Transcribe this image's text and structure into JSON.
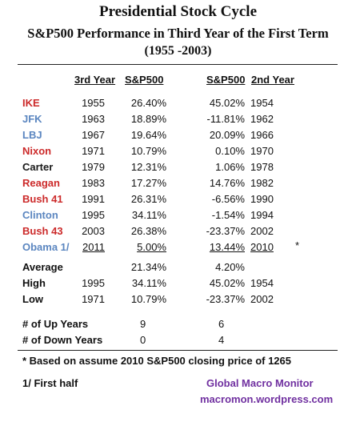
{
  "title": {
    "line1": "Presidential Stock Cycle",
    "line2": "S&P500 Performance in Third Year of the First Term",
    "line3": "(1955 -2003)"
  },
  "headers": {
    "third_year": "3rd Year",
    "sp500_third": "S&P500",
    "sp500_second": "S&P500",
    "second_year": "2nd Year"
  },
  "colors": {
    "red": "#cc2a2a",
    "blue": "#5b86c0",
    "black": "#1a1a1a"
  },
  "rows": [
    {
      "name": "IKE",
      "color": "red",
      "y3": "1955",
      "p3": "26.40%",
      "p2": "45.02%",
      "y2": "1954"
    },
    {
      "name": "JFK",
      "color": "blue",
      "y3": "1963",
      "p3": "18.89%",
      "p2": "-11.81%",
      "y2": "1962"
    },
    {
      "name": "LBJ",
      "color": "blue",
      "y3": "1967",
      "p3": "19.64%",
      "p2": "20.09%",
      "y2": "1966"
    },
    {
      "name": "Nixon",
      "color": "red",
      "y3": "1971",
      "p3": "10.79%",
      "p2": "0.10%",
      "y2": "1970"
    },
    {
      "name": "Carter",
      "color": "black",
      "y3": "1979",
      "p3": "12.31%",
      "p2": "1.06%",
      "y2": "1978"
    },
    {
      "name": "Reagan",
      "color": "red",
      "y3": "1983",
      "p3": "17.27%",
      "p2": "14.76%",
      "y2": "1982"
    },
    {
      "name": "Bush 41",
      "color": "red",
      "y3": "1991",
      "p3": "26.31%",
      "p2": "-6.56%",
      "y2": "1990"
    },
    {
      "name": "Clinton",
      "color": "blue",
      "y3": "1995",
      "p3": "34.11%",
      "p2": "-1.54%",
      "y2": "1994"
    },
    {
      "name": "Bush 43",
      "color": "red",
      "y3": "2003",
      "p3": "26.38%",
      "p2": "-23.37%",
      "y2": "2002"
    },
    {
      "name": "Obama 1/",
      "color": "blue",
      "y3": "2011",
      "p3": "5.00%",
      "p2": "13.44%",
      "y2": "2010",
      "mark": "*"
    }
  ],
  "stats": [
    {
      "label": "Average",
      "y3": "",
      "p3": "21.34%",
      "p2": "4.20%",
      "y2": ""
    },
    {
      "label": "High",
      "y3": "1995",
      "p3": "34.11%",
      "p2": "45.02%",
      "y2": "1954"
    },
    {
      "label": "Low",
      "y3": "1971",
      "p3": "10.79%",
      "p2": "-23.37%",
      "y2": "2002"
    }
  ],
  "counts": [
    {
      "label": "# of Up Years",
      "v3": "9",
      "v2": "6"
    },
    {
      "label": "# of Down Years",
      "v3": "0",
      "v2": "4"
    }
  ],
  "footnote1": "* Based on assume 2010 S&P500 closing price of 1265",
  "footnote2": "1/  First half",
  "brand": {
    "line1": "Global Macro Monitor",
    "line2": "macromon.wordpress.com"
  }
}
